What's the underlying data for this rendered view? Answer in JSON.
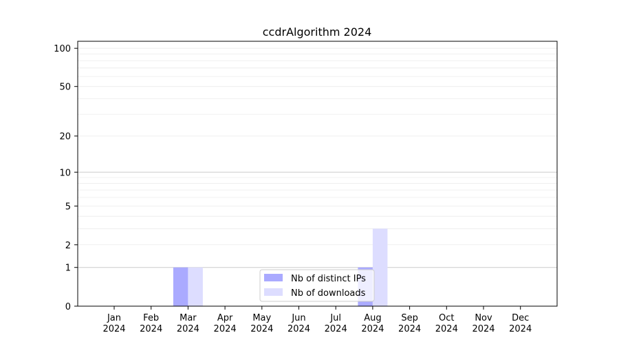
{
  "chart_data": {
    "type": "bar",
    "title": "ccdrAlgorithm 2024",
    "xlabel": "",
    "ylabel": "",
    "categories": [
      "Jan\n2024",
      "Feb\n2024",
      "Mar\n2024",
      "Apr\n2024",
      "May\n2024",
      "Jun\n2024",
      "Jul\n2024",
      "Aug\n2024",
      "Sep\n2024",
      "Oct\n2024",
      "Nov\n2024",
      "Dec\n2024"
    ],
    "series": [
      {
        "name": "Nb of distinct IPs",
        "color": "#aaaaff",
        "values": [
          0,
          0,
          1,
          0,
          0,
          0,
          0,
          1,
          0,
          0,
          0,
          0
        ]
      },
      {
        "name": "Nb of downloads",
        "color": "#ddddff",
        "values": [
          0,
          0,
          1,
          0,
          0,
          0,
          0,
          3,
          0,
          0,
          0,
          0
        ]
      }
    ],
    "yscale": "log(1+y)",
    "ylim": [
      0,
      113
    ],
    "yticks": [
      0,
      1,
      2,
      5,
      10,
      20,
      50,
      100
    ],
    "grid": true,
    "legend": "lower-center"
  }
}
